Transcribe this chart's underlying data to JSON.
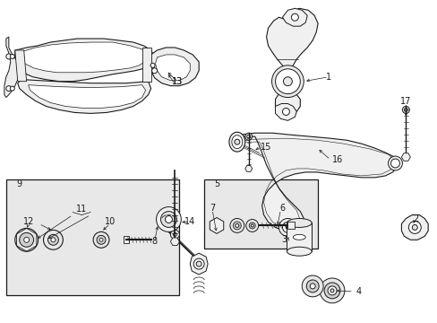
{
  "bg_color": "#ffffff",
  "line_color": "#1a1a1a",
  "box_bg": "#e8e8e8",
  "lw": 0.7
}
